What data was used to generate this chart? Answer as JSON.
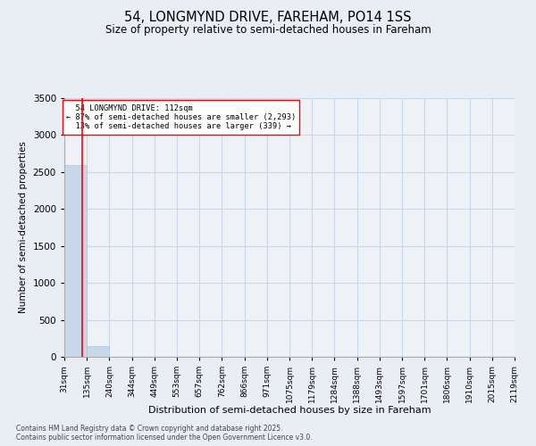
{
  "title_line1": "54, LONGMYND DRIVE, FAREHAM, PO14 1SS",
  "title_line2": "Size of property relative to semi-detached houses in Fareham",
  "xlabel": "Distribution of semi-detached houses by size in Fareham",
  "ylabel": "Number of semi-detached properties",
  "property_size": 112,
  "property_label": "54 LONGMYND DRIVE: 112sqm",
  "smaller_pct": 87,
  "smaller_count": 2293,
  "larger_pct": 13,
  "larger_count": 339,
  "bin_edges": [
    31,
    135,
    240,
    344,
    449,
    553,
    657,
    762,
    866,
    971,
    1075,
    1179,
    1284,
    1388,
    1493,
    1597,
    1701,
    1806,
    1910,
    2015,
    2119
  ],
  "bar_heights": [
    2600,
    150,
    0,
    0,
    0,
    0,
    0,
    0,
    0,
    0,
    0,
    0,
    0,
    0,
    0,
    0,
    0,
    0,
    0,
    0
  ],
  "bar_color": "#c8d8e8",
  "bar_edge_color": "#b0c8de",
  "grid_color": "#c8d8e8",
  "vline_color": "red",
  "box_color": "red",
  "ylim": [
    0,
    3500
  ],
  "yticks": [
    0,
    500,
    1000,
    1500,
    2000,
    2500,
    3000,
    3500
  ],
  "tick_labels": [
    "31sqm",
    "135sqm",
    "240sqm",
    "344sqm",
    "449sqm",
    "553sqm",
    "657sqm",
    "762sqm",
    "866sqm",
    "971sqm",
    "1075sqm",
    "1179sqm",
    "1284sqm",
    "1388sqm",
    "1493sqm",
    "1597sqm",
    "1701sqm",
    "1806sqm",
    "1910sqm",
    "2015sqm",
    "2119sqm"
  ],
  "footer_line1": "Contains HM Land Registry data © Crown copyright and database right 2025.",
  "footer_line2": "Contains public sector information licensed under the Open Government Licence v3.0.",
  "bg_color": "#e8eef4",
  "plot_bg_color": "#eef2f7"
}
